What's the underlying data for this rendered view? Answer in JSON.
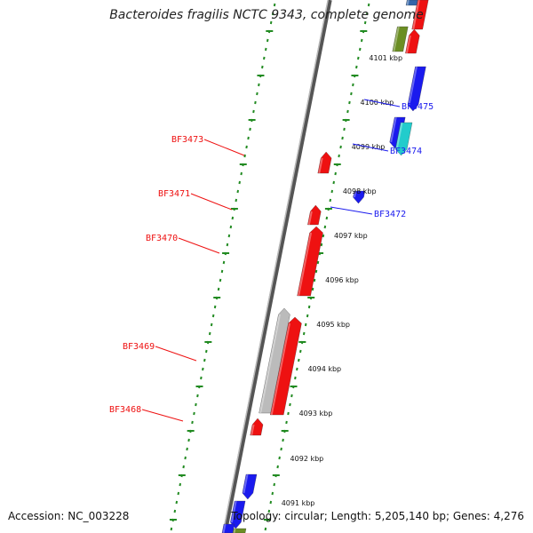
{
  "title": "Bacteroides fragilis NCTC 9343, complete genome",
  "footer": {
    "accession": "Accession: NC_003228",
    "summary": "Topology: circular; Length: 5,205,140 bp; Genes: 4,276"
  },
  "colors": {
    "forward": "#ee1111",
    "reverse": "#1a1aee",
    "rna": "#bbbbbb",
    "cyan": "#22cccc",
    "olive": "#6b8e23",
    "backbone": "#888888",
    "tick": "#228b22"
  },
  "scale": {
    "unit": "kbp",
    "labels": [
      "4101 kbp",
      "4100 kbp",
      "4099 kbp",
      "4098 kbp",
      "4097 kbp",
      "4096 kbp",
      "4095 kbp",
      "4094 kbp",
      "4093 kbp",
      "4092 kbp",
      "4091 kbp"
    ]
  },
  "gene_labels": {
    "left": [
      "BF3473",
      "BF3471",
      "BF3470",
      "BF3469",
      "BF3468"
    ],
    "right": [
      "BF3475",
      "BF3474",
      "BF3472"
    ]
  }
}
